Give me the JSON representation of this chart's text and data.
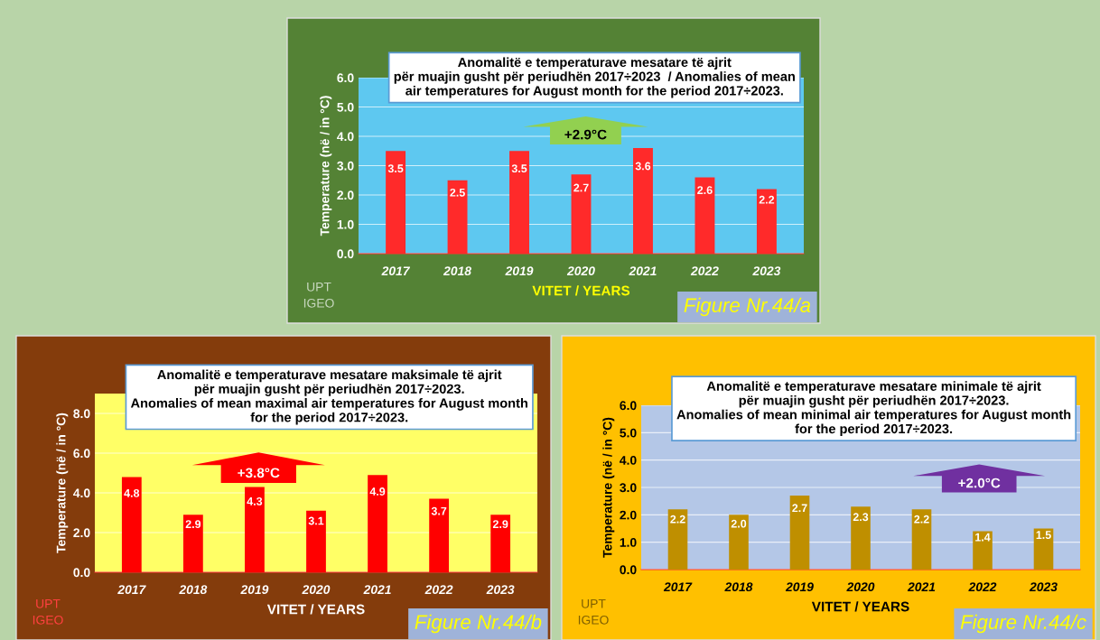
{
  "chart_data": [
    {
      "type": "bar",
      "title": "Anomalitë e temperaturave mesatare të ajrit\npër muajin gusht për periudhën 2017÷2023  / Anomalies of mean\nair temperatures for August month for the period 2017÷2023.",
      "xlabel": "VITET / YEARS",
      "ylabel": "Temperature (në / in °C)",
      "categories": [
        "2017",
        "2018",
        "2019",
        "2020",
        "2021",
        "2022",
        "2023"
      ],
      "values": [
        3.5,
        2.5,
        3.5,
        2.7,
        3.6,
        2.6,
        2.2
      ],
      "value_labels": [
        "3.5",
        "2.5",
        "3.5",
        "2.7",
        "3.6",
        "2.6",
        "2.2"
      ],
      "color": "#ff2a2a",
      "ylim": [
        0,
        6
      ],
      "yticks": [
        {
          "value": 0,
          "label": "0.0"
        },
        {
          "value": 1,
          "label": "1.0"
        },
        {
          "value": 2,
          "label": "2.0"
        },
        {
          "value": 3,
          "label": "3.0"
        },
        {
          "value": 4,
          "label": "4.0"
        },
        {
          "value": 5,
          "label": "5.0"
        },
        {
          "value": 6,
          "label": "6.0"
        }
      ],
      "grid": "y",
      "annotations": [
        "+2.9°C",
        "UPT\nIGEO",
        "Figure Nr.44/a"
      ]
    },
    {
      "type": "bar",
      "title": "Anomalitë e temperaturave mesatare maksimale të ajrit\npër muajin gusht për periudhën 2017÷2023.\nAnomalies of mean maximal air temperatures for August month\nfor the period 2017÷2023.",
      "xlabel": "VITET / YEARS",
      "ylabel": "Temperature (në / in °C)",
      "categories": [
        "2017",
        "2018",
        "2019",
        "2020",
        "2021",
        "2022",
        "2023"
      ],
      "values": [
        4.8,
        2.9,
        4.3,
        3.1,
        4.9,
        3.7,
        2.9
      ],
      "value_labels": [
        "4.8",
        "2.9",
        "4.3",
        "3.1",
        "4.9",
        "3.7",
        "2.9"
      ],
      "color": "#ff0000",
      "ylim": [
        0,
        9
      ],
      "yticks": [
        {
          "value": 0,
          "label": "0.0"
        },
        {
          "value": 2,
          "label": "2.0"
        },
        {
          "value": 4,
          "label": "4.0"
        },
        {
          "value": 6,
          "label": "6.0"
        },
        {
          "value": 8,
          "label": "8.0"
        }
      ],
      "grid": "y",
      "annotations": [
        "+3.8°C",
        "UPT\nIGEO",
        "Figure Nr.44/b"
      ]
    },
    {
      "type": "bar",
      "title": "Anomalitë e temperaturave mesatare minimale të ajrit\npër muajin gusht për periudhën 2017÷2023.\nAnomalies of mean minimal air temperatures for August month\nfor the period 2017÷2023.",
      "xlabel": "VITET / YEARS",
      "ylabel": "Temperature (në / in °C)",
      "categories": [
        "2017",
        "2018",
        "2019",
        "2020",
        "2021",
        "2022",
        "2023"
      ],
      "values": [
        2.2,
        2.0,
        2.7,
        2.3,
        2.2,
        1.4,
        1.5
      ],
      "value_labels": [
        "2.2",
        "2.0",
        "2.7",
        "2.3",
        "2.2",
        "1.4",
        "1.5"
      ],
      "color": "#bf8f00",
      "ylim": [
        0,
        6
      ],
      "yticks": [
        {
          "value": 0,
          "label": "0.0"
        },
        {
          "value": 1,
          "label": "1.0"
        },
        {
          "value": 2,
          "label": "2.0"
        },
        {
          "value": 3,
          "label": "3.0"
        },
        {
          "value": 4,
          "label": "4.0"
        },
        {
          "value": 5,
          "label": "5.0"
        },
        {
          "value": 6,
          "label": "6.0"
        }
      ],
      "grid": "y",
      "annotations": [
        "+2.0°C",
        "UPT\nIGEO",
        "Figure Nr.44/c"
      ]
    }
  ]
}
